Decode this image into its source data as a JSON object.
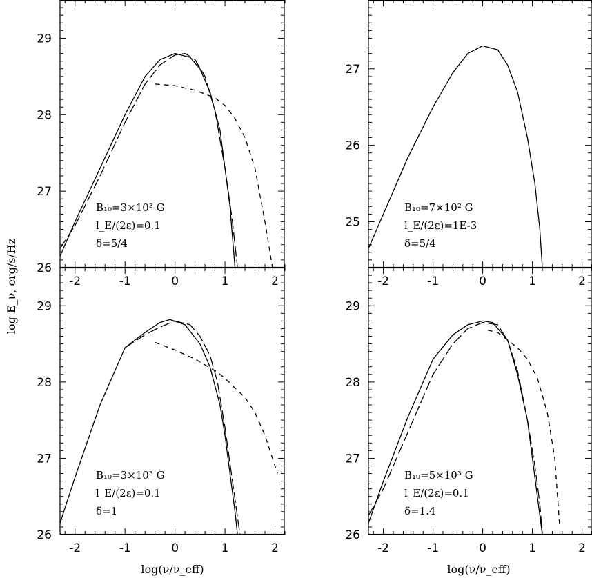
{
  "ylabel": "log E_ν, erg/s/Hz",
  "xlabel": "log(ν/ν_eff)",
  "chart_data": [
    {
      "type": "line",
      "panel": "top-left",
      "xlim": [
        -2.3,
        2.2
      ],
      "ylim": [
        26,
        29.5
      ],
      "xticks": [
        -2,
        -1,
        0,
        1,
        2
      ],
      "yticks": [
        26,
        27,
        28,
        29
      ],
      "annotation": [
        "B₁₀=3×10³ G",
        "l_E/(2ε)=0.1",
        "δ=5/4"
      ],
      "series": [
        {
          "style": "solid",
          "x": [
            -2.3,
            -2.0,
            -1.5,
            -1.0,
            -0.6,
            -0.3,
            0.0,
            0.3,
            0.5,
            0.7,
            0.9,
            1.0,
            1.1,
            1.15,
            1.2
          ],
          "y": [
            26.15,
            26.6,
            27.3,
            28.0,
            28.5,
            28.72,
            28.8,
            28.75,
            28.6,
            28.3,
            27.8,
            27.3,
            26.8,
            26.4,
            26.0
          ]
        },
        {
          "style": "long-dash",
          "x": [
            -2.3,
            -2.0,
            -1.5,
            -1.0,
            -0.6,
            -0.3,
            0.0,
            0.2,
            0.4,
            0.6,
            0.8,
            1.0,
            1.15,
            1.25
          ],
          "y": [
            26.25,
            26.55,
            27.2,
            27.9,
            28.4,
            28.65,
            28.78,
            28.8,
            28.72,
            28.5,
            28.05,
            27.3,
            26.6,
            26.0
          ]
        },
        {
          "style": "short-dash",
          "x": [
            -0.4,
            0.0,
            0.4,
            0.8,
            1.0,
            1.2,
            1.4,
            1.6,
            1.8,
            1.95
          ],
          "y": [
            28.4,
            28.38,
            28.32,
            28.22,
            28.12,
            27.95,
            27.7,
            27.3,
            26.6,
            26.0
          ]
        }
      ]
    },
    {
      "type": "line",
      "panel": "top-right",
      "xlim": [
        -2.3,
        2.2
      ],
      "ylim": [
        24.4,
        27.9
      ],
      "xticks": [
        -2,
        -1,
        0,
        1,
        2
      ],
      "yticks": [
        25,
        26,
        27
      ],
      "annotation": [
        "B₁₀=7×10² G",
        "l_E/(2ε)=1E-3",
        "δ=5/4"
      ],
      "series": [
        {
          "style": "solid",
          "x": [
            -2.3,
            -2.0,
            -1.5,
            -1.0,
            -0.6,
            -0.3,
            0.0,
            0.3,
            0.5,
            0.7,
            0.9,
            1.05,
            1.15,
            1.2
          ],
          "y": [
            24.65,
            25.1,
            25.85,
            26.5,
            26.95,
            27.2,
            27.3,
            27.25,
            27.05,
            26.7,
            26.1,
            25.5,
            24.9,
            24.4
          ]
        }
      ]
    },
    {
      "type": "line",
      "panel": "bottom-left",
      "xlim": [
        -2.3,
        2.2
      ],
      "ylim": [
        26,
        29.5
      ],
      "xticks": [
        -2,
        -1,
        0,
        1,
        2
      ],
      "yticks": [
        26,
        27,
        28,
        29
      ],
      "annotation": [
        "B₁₀=3×10³ G",
        "l_E/(2ε)=0.1",
        "δ=1"
      ],
      "series": [
        {
          "style": "solid",
          "x": [
            -2.3,
            -2.0,
            -1.5,
            -1.0,
            -0.6,
            -0.3,
            -0.1,
            0.2,
            0.5,
            0.7,
            0.9,
            1.0,
            1.1,
            1.2,
            1.25
          ],
          "y": [
            26.15,
            26.75,
            27.7,
            28.45,
            28.65,
            28.78,
            28.82,
            28.75,
            28.5,
            28.2,
            27.7,
            27.3,
            26.8,
            26.3,
            26.0
          ]
        },
        {
          "style": "long-dash",
          "x": [
            -1.0,
            -0.6,
            -0.3,
            0.0,
            0.3,
            0.5,
            0.7,
            0.85,
            1.0,
            1.15,
            1.3
          ],
          "y": [
            28.45,
            28.62,
            28.72,
            28.8,
            28.75,
            28.6,
            28.35,
            28.0,
            27.4,
            26.7,
            26.0
          ]
        },
        {
          "style": "short-dash",
          "x": [
            -0.4,
            0.0,
            0.4,
            0.8,
            1.0,
            1.2,
            1.4,
            1.6,
            1.8,
            1.95,
            2.05
          ],
          "y": [
            28.52,
            28.42,
            28.3,
            28.15,
            28.05,
            27.92,
            27.8,
            27.6,
            27.3,
            27.0,
            26.8
          ]
        }
      ]
    },
    {
      "type": "line",
      "panel": "bottom-right",
      "xlim": [
        -2.3,
        2.2
      ],
      "ylim": [
        26,
        29.5
      ],
      "xticks": [
        -2,
        -1,
        0,
        1,
        2
      ],
      "yticks": [
        26,
        27,
        28,
        29
      ],
      "annotation": [
        "B₁₀=5×10³ G",
        "l_E/(2ε)=0.1",
        "δ=1.4"
      ],
      "series": [
        {
          "style": "solid",
          "x": [
            -2.3,
            -2.0,
            -1.5,
            -1.0,
            -0.6,
            -0.3,
            0.0,
            0.2,
            0.5,
            0.7,
            0.9,
            1.0,
            1.1,
            1.2
          ],
          "y": [
            26.15,
            26.7,
            27.55,
            28.3,
            28.62,
            28.75,
            28.8,
            28.78,
            28.55,
            28.1,
            27.5,
            27.0,
            26.5,
            26.0
          ]
        },
        {
          "style": "long-dash",
          "x": [
            -2.3,
            -2.0,
            -1.5,
            -1.0,
            -0.6,
            -0.3,
            0.0,
            0.3,
            0.5,
            0.7,
            0.9,
            1.05,
            1.15,
            1.2
          ],
          "y": [
            26.25,
            26.6,
            27.35,
            28.1,
            28.5,
            28.7,
            28.78,
            28.75,
            28.55,
            28.15,
            27.5,
            26.9,
            26.4,
            26.0
          ]
        },
        {
          "style": "short-dash",
          "x": [
            0.1,
            0.3,
            0.5,
            0.7,
            0.9,
            1.1,
            1.3,
            1.45,
            1.55
          ],
          "y": [
            28.68,
            28.65,
            28.55,
            28.45,
            28.3,
            28.05,
            27.6,
            27.0,
            26.1
          ]
        }
      ]
    }
  ]
}
